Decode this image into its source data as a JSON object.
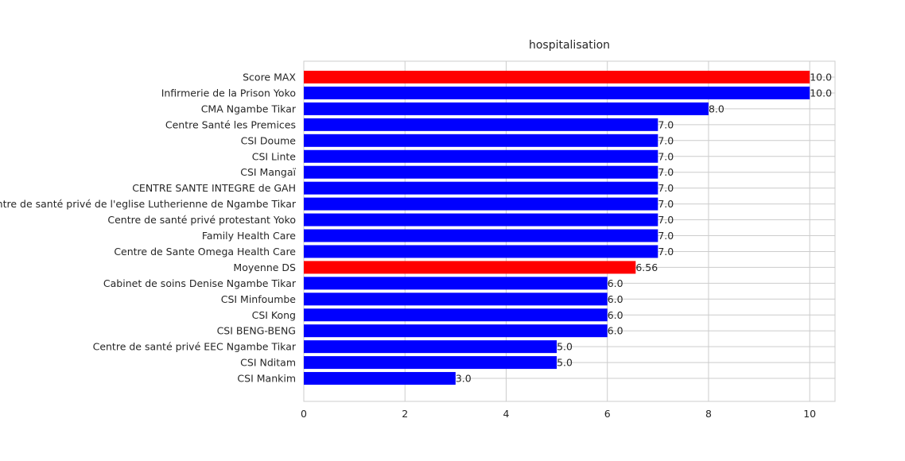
{
  "chart_data": {
    "type": "bar",
    "orientation": "horizontal",
    "title": "hospitalisation",
    "xlabel": "",
    "ylabel": "",
    "xlim": [
      0,
      10.5
    ],
    "xticks": [
      0,
      2,
      4,
      6,
      8,
      10
    ],
    "grid": true,
    "categories": [
      "Score MAX",
      "Infirmerie de la Prison Yoko",
      "CMA Ngambe Tikar",
      "Centre Santé les Premices",
      "CSI Doume",
      "CSI Linte",
      "CSI Mangaï",
      "CENTRE SANTE INTEGRE  de GAH",
      "Centre de santé privé  de l'eglise Lutherienne de Ngambe Tikar",
      "Centre de santé privé protestant Yoko",
      "Family Health Care",
      "Centre de Sante Omega Health  Care",
      "Moyenne DS",
      "Cabinet de soins Denise Ngambe Tikar",
      "CSI Minfoumbe",
      "CSI Kong",
      "CSI BENG-BENG",
      "Centre de santé privé EEC Ngambe Tikar",
      "CSI Nditam",
      "CSI Mankim"
    ],
    "values": [
      10.0,
      10.0,
      8.0,
      7.0,
      7.0,
      7.0,
      7.0,
      7.0,
      7.0,
      7.0,
      7.0,
      7.0,
      6.56,
      6.0,
      6.0,
      6.0,
      6.0,
      5.0,
      5.0,
      3.0
    ],
    "value_labels": [
      "10.0",
      "10.0",
      "8.0",
      "7.0",
      "7.0",
      "7.0",
      "7.0",
      "7.0",
      "7.0",
      "7.0",
      "7.0",
      "7.0",
      "6.56",
      "6.0",
      "6.0",
      "6.0",
      "6.0",
      "5.0",
      "5.0",
      "3.0"
    ],
    "colors": [
      "#ff0000",
      "#0000ff",
      "#0000ff",
      "#0000ff",
      "#0000ff",
      "#0000ff",
      "#0000ff",
      "#0000ff",
      "#0000ff",
      "#0000ff",
      "#0000ff",
      "#0000ff",
      "#ff0000",
      "#0000ff",
      "#0000ff",
      "#0000ff",
      "#0000ff",
      "#0000ff",
      "#0000ff",
      "#0000ff"
    ]
  }
}
